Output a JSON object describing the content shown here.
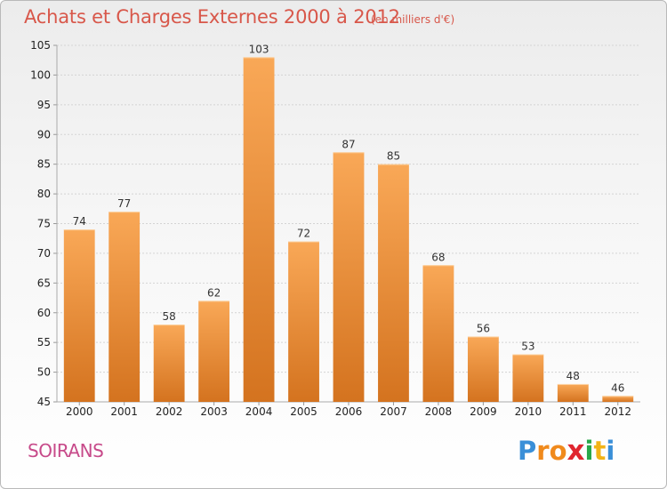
{
  "title": "Achats et Charges Externes 2000 à 2012",
  "unit": "(en milliers d'€)",
  "place": "SOIRANS",
  "logo": {
    "letters": [
      "P",
      "r",
      "o",
      "x",
      "i",
      "t",
      "i"
    ],
    "colors": [
      "#3a8fd8",
      "#f08a1c",
      "#f08a1c",
      "#e0262f",
      "#2aa84a",
      "#f2b317",
      "#3a8fd8"
    ]
  },
  "colors": {
    "bar_top": "#f9a857",
    "bar_bottom": "#d4731f",
    "title": "#d8574a",
    "grid": "#d4d4d4"
  },
  "chart_data": {
    "type": "bar",
    "categories": [
      "2000",
      "2001",
      "2002",
      "2003",
      "2004",
      "2005",
      "2006",
      "2007",
      "2008",
      "2009",
      "2010",
      "2011",
      "2012"
    ],
    "values": [
      74,
      77,
      58,
      62,
      103,
      72,
      87,
      85,
      68,
      56,
      53,
      48,
      46
    ],
    "title": "Achats et Charges Externes 2000 à 2012",
    "xlabel": "",
    "ylabel": "",
    "ylim": [
      45,
      105
    ],
    "yticks": [
      45,
      50,
      55,
      60,
      65,
      70,
      75,
      80,
      85,
      90,
      95,
      100,
      105
    ],
    "grid": true,
    "data_labels": true
  }
}
